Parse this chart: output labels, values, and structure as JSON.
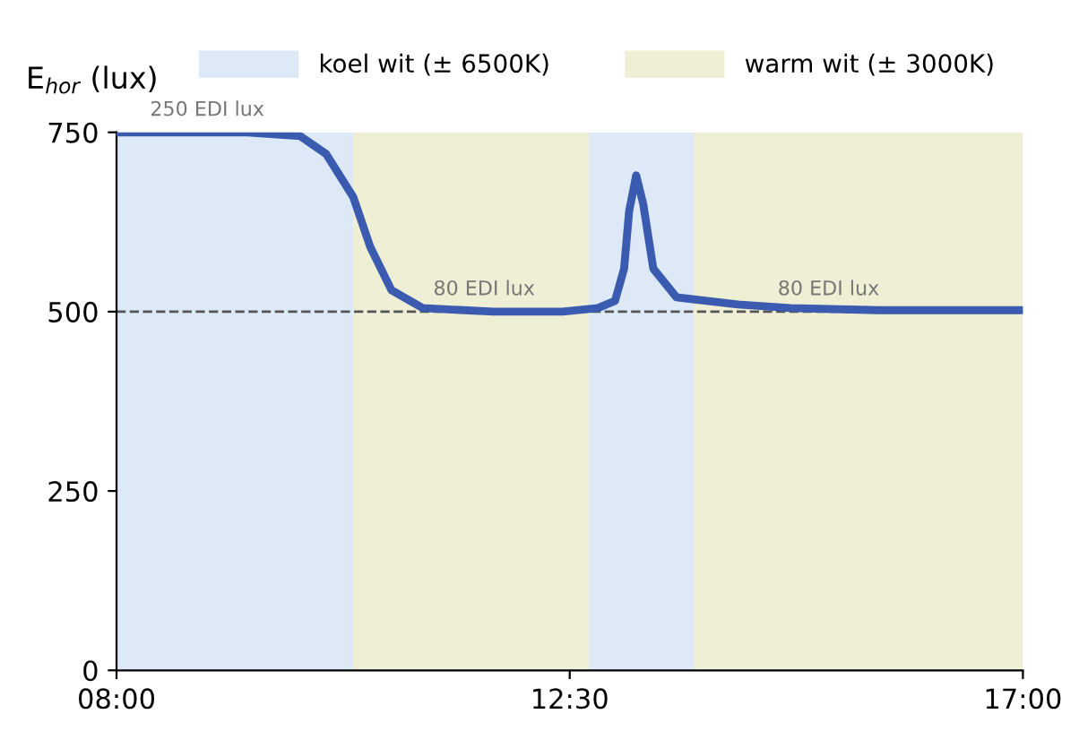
{
  "chart_data": {
    "type": "line",
    "ylabel": "E$_{hor}$ (lux)",
    "x": [
      8,
      9.3,
      9.82,
      10.08,
      10.35,
      10.52,
      10.73,
      11.04,
      11.74,
      12.43,
      12.78,
      12.95,
      13.04,
      13.09,
      13.16,
      13.23,
      13.33,
      13.56,
      14.17,
      14.69,
      15.56,
      17
    ],
    "series": [
      {
        "color": "#3a5bb0",
        "values": [
          750,
          750,
          745,
          720,
          660,
          590,
          530,
          505,
          500,
          500,
          505,
          515,
          560,
          640,
          690,
          650,
          560,
          520,
          510,
          505,
          502,
          502
        ]
      }
    ],
    "xlim": [
      8,
      17
    ],
    "xticks": [
      {
        "value": 8,
        "label": "08:00"
      },
      {
        "value": 12.5,
        "label": "12:30"
      },
      {
        "value": 17,
        "label": "17:00"
      }
    ],
    "ylim": [
      0,
      750
    ],
    "yticks": [
      0,
      250,
      500,
      750
    ],
    "bands": [
      {
        "axis": "x",
        "from": 8,
        "to": 10.35,
        "label": "koel wit (± 6500K)",
        "color": "#dde9f6"
      },
      {
        "axis": "x",
        "from": 10.35,
        "to": 12.69,
        "label": "warm wit (± 3000K)",
        "color": "#eeefd4"
      },
      {
        "axis": "x",
        "from": 12.69,
        "to": 13.73,
        "color": "#dde9f6"
      },
      {
        "axis": "x",
        "from": 13.73,
        "to": 17,
        "color": "#eeefd4"
      }
    ],
    "ref_lines": [
      {
        "axis": "y",
        "value": 500,
        "line_style": "dashed",
        "color": "#555555"
      }
    ],
    "annotations": [
      {
        "text": "250 EDI lux",
        "x": 8.9,
        "y": 750
      },
      {
        "text": "80 EDI lux",
        "x": 11.65,
        "y": 500
      },
      {
        "text": "80 EDI lux",
        "x": 15.07,
        "y": 500
      }
    ],
    "legend": "top",
    "grid": false,
    "marker": "none",
    "line_style": "solid"
  }
}
